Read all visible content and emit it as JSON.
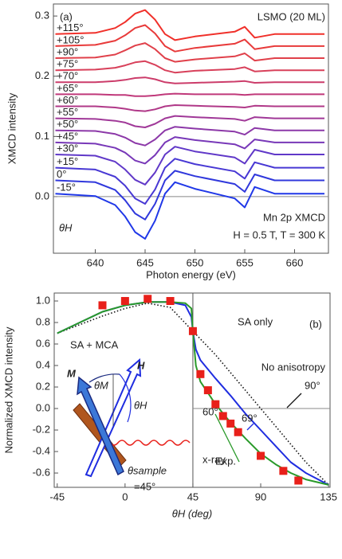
{
  "chart_data": [
    {
      "type": "line",
      "x_label": "Photon energy (eV)",
      "y_label": "XMCD intensity",
      "x": [
        636,
        640,
        642,
        643,
        644,
        645,
        646,
        647,
        648,
        650,
        654,
        655,
        656,
        658,
        663
      ],
      "series": [
        {
          "name": "+115°",
          "color": "#f0302a",
          "values": [
            0.27,
            0.272,
            0.28,
            0.29,
            0.304,
            0.31,
            0.294,
            0.27,
            0.26,
            0.266,
            0.274,
            0.282,
            0.264,
            0.27,
            0.27
          ]
        },
        {
          "name": "+105°",
          "color": "#e83a3a",
          "values": [
            0.25,
            0.252,
            0.259,
            0.268,
            0.28,
            0.285,
            0.271,
            0.25,
            0.241,
            0.247,
            0.254,
            0.261,
            0.245,
            0.25,
            0.25
          ]
        },
        {
          "name": "+90°",
          "color": "#e0404a",
          "values": [
            0.23,
            0.231,
            0.236,
            0.243,
            0.251,
            0.255,
            0.245,
            0.23,
            0.224,
            0.228,
            0.233,
            0.238,
            0.226,
            0.23,
            0.23
          ]
        },
        {
          "name": "+75°",
          "color": "#d8405a",
          "values": [
            0.21,
            0.211,
            0.214,
            0.218,
            0.223,
            0.225,
            0.219,
            0.21,
            0.206,
            0.209,
            0.212,
            0.215,
            0.208,
            0.21,
            0.21
          ]
        },
        {
          "name": "+70°",
          "color": "#cc3c6a",
          "values": [
            0.19,
            0.19,
            0.192,
            0.194,
            0.197,
            0.198,
            0.195,
            0.19,
            0.188,
            0.189,
            0.191,
            0.192,
            0.189,
            0.19,
            0.19
          ]
        },
        {
          "name": "+65°",
          "color": "#c0387a",
          "values": [
            0.17,
            0.17,
            0.169,
            0.169,
            0.167,
            0.167,
            0.168,
            0.17,
            0.171,
            0.17,
            0.17,
            0.169,
            0.17,
            0.17,
            0.17
          ]
        },
        {
          "name": "+60°",
          "color": "#b03888",
          "values": [
            0.15,
            0.15,
            0.148,
            0.146,
            0.143,
            0.142,
            0.145,
            0.15,
            0.152,
            0.151,
            0.149,
            0.148,
            0.151,
            0.15,
            0.15
          ]
        },
        {
          "name": "+55°",
          "color": "#a03898",
          "values": [
            0.13,
            0.129,
            0.126,
            0.123,
            0.117,
            0.115,
            0.121,
            0.13,
            0.134,
            0.132,
            0.129,
            0.126,
            0.132,
            0.13,
            0.13
          ]
        },
        {
          "name": "+50°",
          "color": "#8c38a8",
          "values": [
            0.11,
            0.109,
            0.104,
            0.098,
            0.089,
            0.085,
            0.095,
            0.11,
            0.116,
            0.113,
            0.108,
            0.103,
            0.114,
            0.11,
            0.11
          ]
        },
        {
          "name": "+45°",
          "color": "#7838b8",
          "values": [
            0.09,
            0.088,
            0.081,
            0.073,
            0.06,
            0.055,
            0.069,
            0.09,
            0.099,
            0.094,
            0.087,
            0.08,
            0.095,
            0.09,
            0.09
          ]
        },
        {
          "name": "+30°",
          "color": "#6038c8",
          "values": [
            0.07,
            0.068,
            0.058,
            0.045,
            0.028,
            0.02,
            0.04,
            0.07,
            0.083,
            0.075,
            0.065,
            0.055,
            0.078,
            0.07,
            0.07
          ]
        },
        {
          "name": "+15°",
          "color": "#4838d4",
          "values": [
            0.048,
            0.045,
            0.033,
            0.018,
            -0.003,
            -0.012,
            0.012,
            0.048,
            0.063,
            0.054,
            0.042,
            0.03,
            0.057,
            0.048,
            0.048
          ]
        },
        {
          "name": "0°",
          "color": "#3038dc",
          "values": [
            0.027,
            0.024,
            0.011,
            -0.006,
            -0.028,
            -0.038,
            -0.012,
            0.027,
            0.043,
            0.034,
            0.021,
            0.008,
            0.037,
            0.027,
            0.027
          ]
        },
        {
          "name": "-15°",
          "color": "#2038e8",
          "values": [
            0.005,
            0.001,
            -0.014,
            -0.033,
            -0.059,
            -0.07,
            -0.04,
            0.005,
            0.024,
            0.013,
            -0.003,
            -0.018,
            0.016,
            0.005,
            0.005
          ]
        }
      ],
      "xlim": [
        635.8,
        663.4
      ],
      "xticks": [
        640,
        645,
        650,
        655,
        660
      ],
      "ylim": [
        -0.094,
        0.32
      ],
      "yticks": [
        {
          "value": 0,
          "label": "0.0"
        },
        0.1,
        0.2,
        0.3
      ],
      "hline": 0,
      "annotations": [
        "(a)",
        "LSMO (20 ML)",
        "Mn 2p XMCD",
        "H = 0.5 T, T = 300 K",
        "θH"
      ]
    },
    {
      "type": "line",
      "x_label": "θH (deg)",
      "y_label": "Normalized XMCD intensity",
      "series": [
        {
          "name": "No anisotropy",
          "color": "#111111",
          "dash": "dotted",
          "x": [
            -45,
            -30,
            -15,
            0,
            15,
            30,
            45,
            60,
            75,
            90,
            105,
            120,
            135
          ],
          "values": [
            0.7,
            0.78,
            0.86,
            0.93,
            0.98,
            0.94,
            0.72,
            0.5,
            0.25,
            0.0,
            -0.25,
            -0.5,
            -0.71
          ]
        },
        {
          "name": "SA only",
          "color": "#1f2de0",
          "x": [
            -45,
            -30,
            -15,
            0,
            15,
            30,
            40,
            44,
            45,
            47,
            50,
            60,
            70,
            80,
            90,
            100,
            110,
            120,
            135
          ],
          "values": [
            0.7,
            0.8,
            0.9,
            0.96,
            0.99,
            0.99,
            0.96,
            0.85,
            0.72,
            0.55,
            0.45,
            0.28,
            0.12,
            -0.05,
            -0.2,
            -0.35,
            -0.5,
            -0.6,
            -0.71
          ]
        },
        {
          "name": "SA + MCA",
          "color": "#2a9a2a",
          "x": [
            -45,
            -30,
            -15,
            0,
            15,
            30,
            40,
            44,
            45,
            47,
            50,
            60,
            70,
            80,
            90,
            100,
            110,
            120,
            135
          ],
          "values": [
            0.7,
            0.8,
            0.9,
            0.96,
            0.99,
            0.99,
            0.98,
            0.93,
            0.72,
            0.4,
            0.25,
            0.04,
            -0.13,
            -0.28,
            -0.42,
            -0.52,
            -0.6,
            -0.66,
            -0.71
          ]
        },
        {
          "name": "Exp.",
          "color": "#e8201a",
          "marker": "square",
          "x": [
            -15,
            0,
            15,
            30,
            45,
            50,
            55,
            60,
            65,
            70,
            75,
            90,
            105,
            115
          ],
          "values": [
            0.96,
            1.0,
            1.02,
            1.0,
            0.72,
            0.32,
            0.17,
            0.04,
            -0.07,
            -0.14,
            -0.22,
            -0.44,
            -0.58,
            -0.67
          ]
        }
      ],
      "xlim": [
        -47,
        136
      ],
      "xticks": [
        -45,
        0,
        45,
        90,
        135
      ],
      "ylim": [
        -0.733,
        1.074
      ],
      "yticks": [
        -0.6,
        -0.4,
        -0.2,
        {
          "value": 0,
          "label": "0.0"
        },
        0.2,
        0.4,
        0.6,
        0.8,
        {
          "value": 1,
          "label": "1.0"
        }
      ],
      "vline": 45,
      "hline": 0,
      "annotations": [
        "(b)",
        "90°",
        "60°",
        "69°",
        "x-ray",
        "θsample",
        "=45°",
        "M",
        "H",
        "θM",
        "θH"
      ]
    }
  ]
}
